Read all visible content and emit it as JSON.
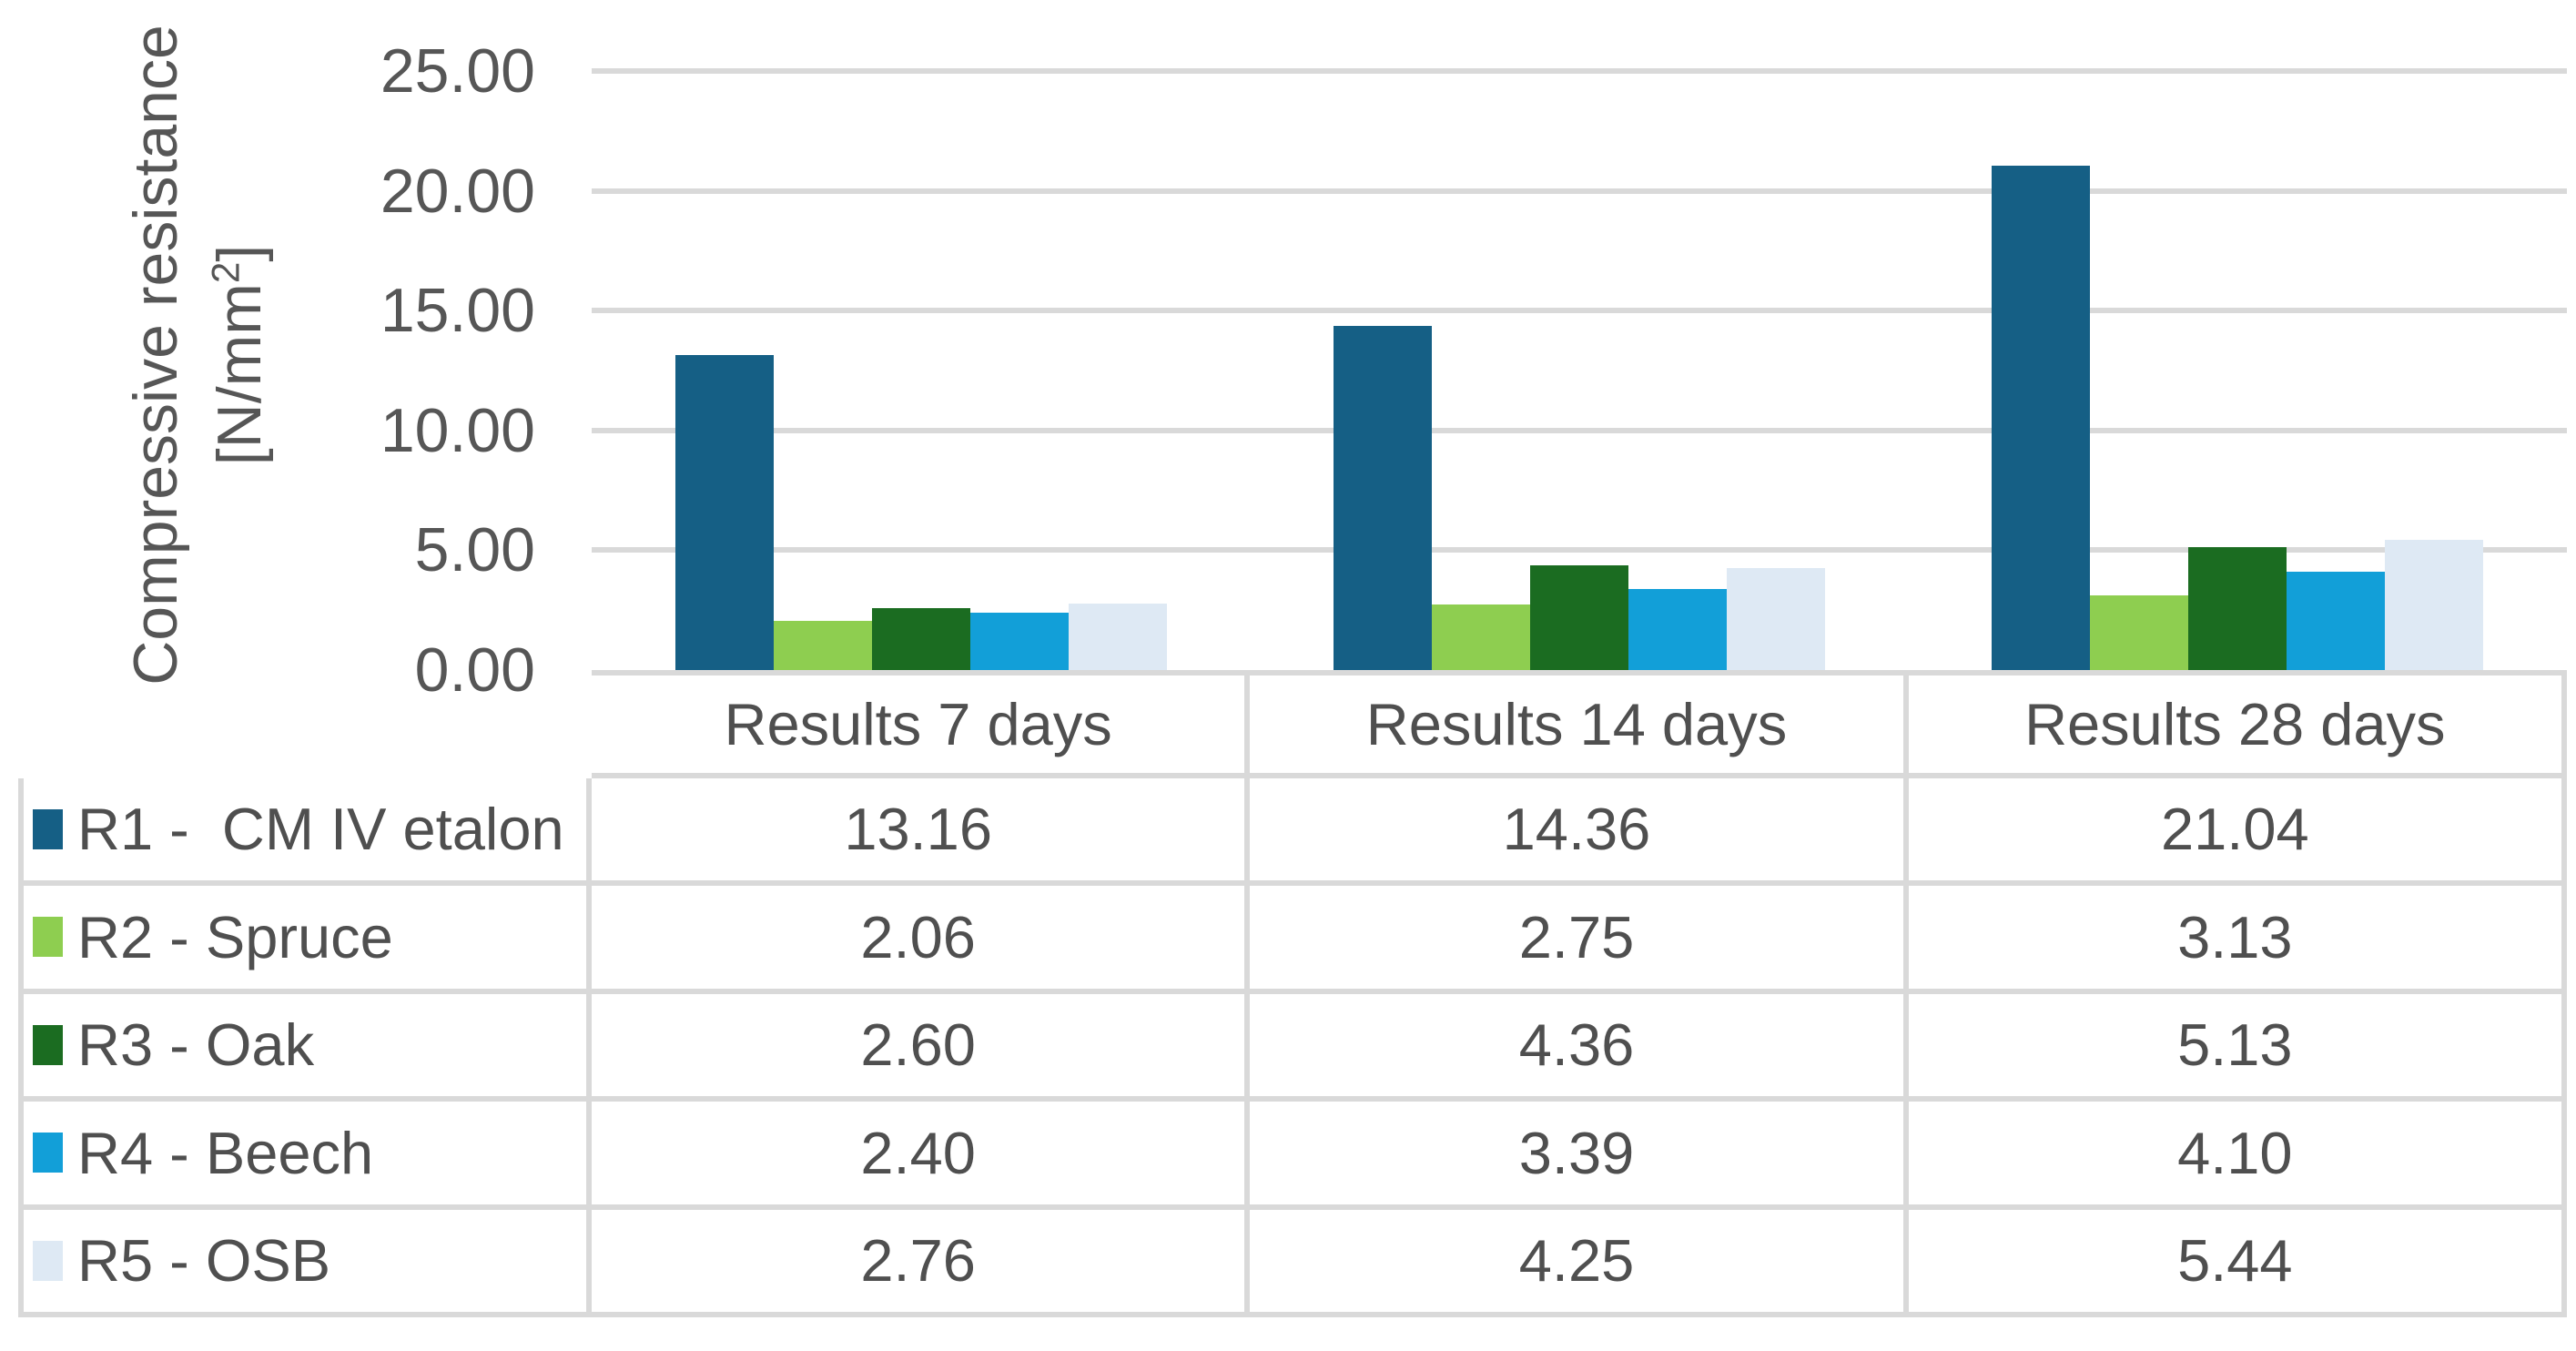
{
  "chart_data": {
    "type": "bar",
    "title": "",
    "categories": [
      "Results 7 days",
      "Results 14 days",
      "Results 28 days"
    ],
    "series": [
      {
        "name": "R1 -  CM IV etalon",
        "color": "#155f85",
        "values": [
          13.16,
          14.36,
          21.04
        ]
      },
      {
        "name": "R2 - Spruce",
        "color": "#8ece50",
        "values": [
          2.06,
          2.75,
          3.13
        ]
      },
      {
        "name": "R3 - Oak",
        "color": "#1b6c21",
        "values": [
          2.6,
          4.36,
          5.13
        ]
      },
      {
        "name": "R4 - Beech",
        "color": "#129fd8",
        "values": [
          2.4,
          3.39,
          4.1
        ]
      },
      {
        "name": "R5 - OSB",
        "color": "#dee9f4",
        "values": [
          2.76,
          4.25,
          5.44
        ]
      }
    ],
    "ylabel_line1": "Compressive resistance",
    "ylabel_unit_pre": "[N/mm",
    "ylabel_unit_sup": "2",
    "ylabel_unit_post": "]",
    "xlabel": "",
    "ylim": [
      0,
      25
    ],
    "ytick_step": 5,
    "ytick_decimals": 2,
    "value_decimals": 2,
    "grid": true,
    "legend_position": "table-left-column",
    "colors": {
      "gridline": "#d9d9d9",
      "table_border": "#d9d9d9",
      "axis_text": "#565656",
      "table_text": "#4f4f4f",
      "background": "#ffffff"
    }
  }
}
